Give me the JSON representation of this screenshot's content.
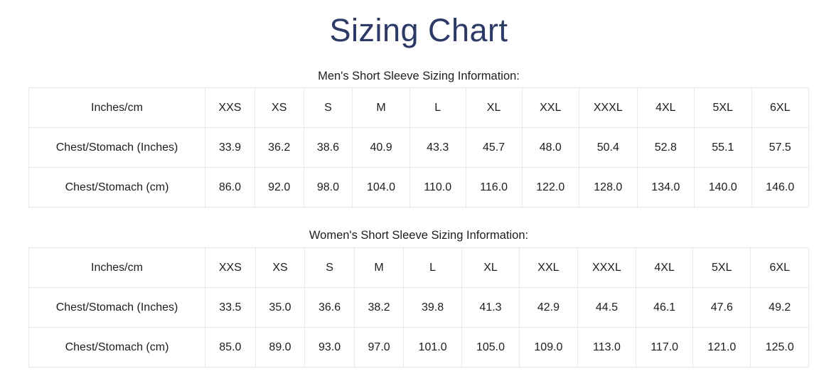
{
  "page": {
    "title": "Sizing Chart"
  },
  "theme": {
    "title_color": "#2d3a66",
    "text_color": "#1d1d1d",
    "border_color": "#e7e7e7",
    "background": "#ffffff"
  },
  "tables": [
    {
      "caption": "Men's Short Sleeve Sizing Information:",
      "header": [
        "Inches/cm",
        "XXS",
        "XS",
        "S",
        "M",
        "L",
        "XL",
        "XXL",
        "XXXL",
        "4XL",
        "5XL",
        "6XL"
      ],
      "rows": [
        {
          "label": "Chest/Stomach (Inches)",
          "values": [
            "33.9",
            "36.2",
            "38.6",
            "40.9",
            "43.3",
            "45.7",
            "48.0",
            "50.4",
            "52.8",
            "55.1",
            "57.5"
          ]
        },
        {
          "label": "Chest/Stomach (cm)",
          "values": [
            "86.0",
            "92.0",
            "98.0",
            "104.0",
            "110.0",
            "116.0",
            "122.0",
            "128.0",
            "134.0",
            "140.0",
            "146.0"
          ]
        }
      ]
    },
    {
      "caption": "Women's Short Sleeve Sizing Information:",
      "header": [
        "Inches/cm",
        "XXS",
        "XS",
        "S",
        "M",
        "L",
        "XL",
        "XXL",
        "XXXL",
        "4XL",
        "5XL",
        "6XL"
      ],
      "rows": [
        {
          "label": "Chest/Stomach (Inches)",
          "values": [
            "33.5",
            "35.0",
            "36.6",
            "38.2",
            "39.8",
            "41.3",
            "42.9",
            "44.5",
            "46.1",
            "47.6",
            "49.2"
          ]
        },
        {
          "label": "Chest/Stomach (cm)",
          "values": [
            "85.0",
            "89.0",
            "93.0",
            "97.0",
            "101.0",
            "105.0",
            "109.0",
            "113.0",
            "117.0",
            "121.0",
            "125.0"
          ]
        }
      ]
    }
  ]
}
